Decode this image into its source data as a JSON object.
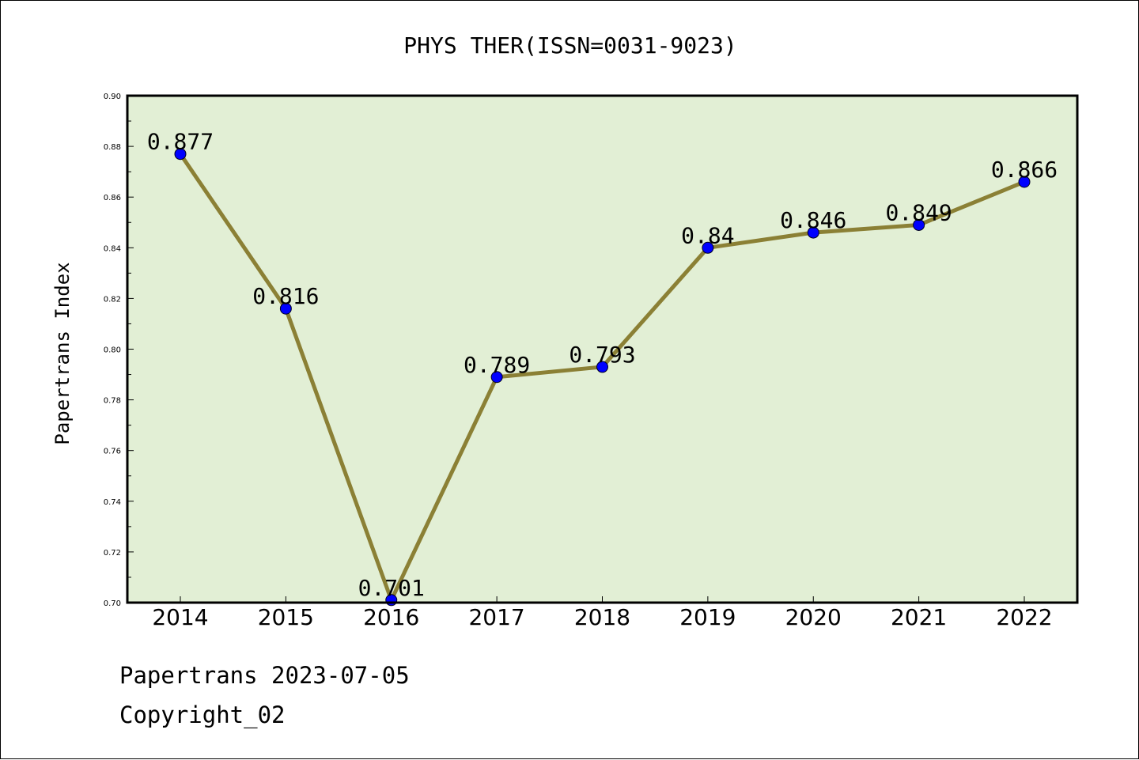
{
  "chart_data": {
    "type": "line",
    "title": "PHYS THER(ISSN=0031-9023)",
    "xlabel": "",
    "ylabel": "Papertrans Index",
    "categories": [
      "2014",
      "2015",
      "2016",
      "2017",
      "2018",
      "2019",
      "2020",
      "2021",
      "2022"
    ],
    "series": [
      {
        "values": [
          0.877,
          0.816,
          0.701,
          0.789,
          0.793,
          0.84,
          0.846,
          0.849,
          0.866
        ],
        "labels": [
          "0.877",
          "0.816",
          "0.701",
          "0.789",
          "0.793",
          "0.84",
          "0.846",
          "0.849",
          "0.866"
        ]
      }
    ],
    "ylim": [
      0.7,
      0.9
    ],
    "yticks": [
      "0.70",
      "0.72",
      "0.74",
      "0.76",
      "0.78",
      "0.80",
      "0.82",
      "0.84",
      "0.86",
      "0.88",
      "0.90"
    ],
    "grid": false,
    "colors": {
      "plot_background": "#e2efd5",
      "line": "#8b8035",
      "marker": "#0000ff"
    }
  },
  "footer": {
    "source": "Papertrans 2023-07-05",
    "copyright": "Copyright_02"
  }
}
